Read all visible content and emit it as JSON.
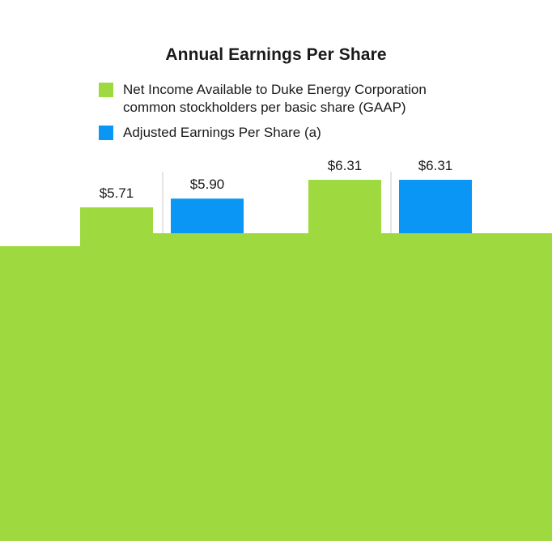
{
  "chart_data": {
    "type": "bar",
    "title": "Annual Earnings Per Share",
    "categories": [
      "",
      ""
    ],
    "series": [
      {
        "name": "Net Income Available to Duke Energy Corporation\ncommon stockholders per basic share (GAAP)",
        "color": "#9ed93f",
        "values": [
          5.71,
          6.31
        ],
        "labels": [
          "$5.71",
          "$6.31"
        ]
      },
      {
        "name": "Adjusted Earnings Per Share (a)",
        "color": "#0a96f5",
        "values": [
          5.9,
          6.31
        ],
        "labels": [
          "$5.90",
          "$6.31"
        ]
      }
    ],
    "grid": false,
    "legend": "top"
  }
}
